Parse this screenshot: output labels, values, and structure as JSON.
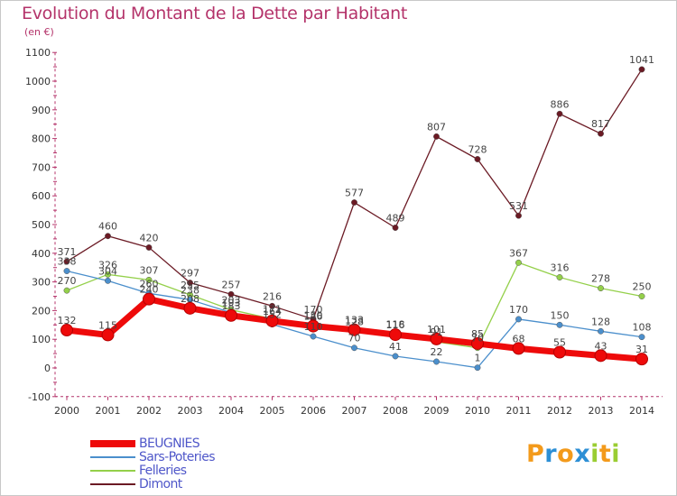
{
  "header": {
    "title": "Evolution du Montant de la Dette par Habitant",
    "subtitle": "(en €)"
  },
  "logo": {
    "letters": [
      "P",
      "r",
      "o",
      "x",
      "i",
      "t",
      "i"
    ],
    "colors": [
      "#f39a1b",
      "#2d8fd5",
      "#f39a1b",
      "#2d8fd5",
      "#9acd32",
      "#f39a1b",
      "#9acd32"
    ]
  },
  "chart_data": {
    "type": "line",
    "title": "Evolution du Montant de la Dette par Habitant",
    "subtitle": "(en €)",
    "xlabel": "",
    "ylabel": "",
    "x": [
      "2000",
      "2001",
      "2002",
      "2003",
      "2004",
      "2005",
      "2006",
      "2007",
      "2008",
      "2009",
      "2010",
      "2011",
      "2012",
      "2013",
      "2014"
    ],
    "ylim": [
      -100,
      1100
    ],
    "yticks": [
      -100,
      0,
      100,
      200,
      300,
      400,
      500,
      600,
      700,
      800,
      900,
      1000,
      1100
    ],
    "grid": false,
    "legend_position": "bottom-left",
    "series": [
      {
        "name": "Dimont",
        "color": "#6b1a24",
        "values": [
          371,
          460,
          420,
          297,
          257,
          216,
          170,
          577,
          489,
          807,
          728,
          531,
          886,
          817,
          1041
        ]
      },
      {
        "name": "Felleries",
        "color": "#94d04a",
        "values": [
          270,
          326,
          307,
          255,
          203,
          171,
          150,
          128,
          118,
          91,
          70,
          367,
          316,
          278,
          250
        ]
      },
      {
        "name": "Sars-Poteries",
        "color": "#4b8fcc",
        "values": [
          338,
          304,
          260,
          238,
          193,
          152,
          110,
          70,
          41,
          22,
          1,
          170,
          150,
          128,
          108
        ]
      },
      {
        "name": "BEUGNIES",
        "color": "#ee0a0a",
        "values": [
          132,
          115,
          240,
          208,
          183,
          164,
          146,
          133,
          116,
          101,
          85,
          68,
          55,
          43,
          31
        ]
      }
    ],
    "legend_order": [
      "BEUGNIES",
      "Sars-Poteries",
      "Felleries",
      "Dimont"
    ]
  }
}
